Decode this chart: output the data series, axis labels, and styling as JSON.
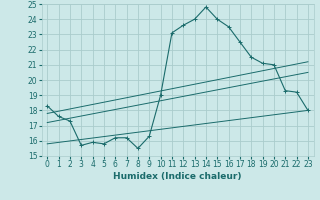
{
  "xlabel": "Humidex (Indice chaleur)",
  "ylabel": "",
  "background_color": "#cce8e8",
  "grid_color": "#aacccc",
  "line_color": "#1a6b6b",
  "xlim": [
    -0.5,
    23.5
  ],
  "ylim": [
    15,
    25
  ],
  "xticks": [
    0,
    1,
    2,
    3,
    4,
    5,
    6,
    7,
    8,
    9,
    10,
    11,
    12,
    13,
    14,
    15,
    16,
    17,
    18,
    19,
    20,
    21,
    22,
    23
  ],
  "yticks": [
    15,
    16,
    17,
    18,
    19,
    20,
    21,
    22,
    23,
    24,
    25
  ],
  "series1_x": [
    0,
    1,
    2,
    3,
    4,
    5,
    6,
    7,
    8,
    9,
    10,
    11,
    12,
    13,
    14,
    15,
    16,
    17,
    18,
    19,
    20,
    21,
    22,
    23
  ],
  "series1_y": [
    18.3,
    17.6,
    17.3,
    15.7,
    15.9,
    15.8,
    16.2,
    16.2,
    15.5,
    16.3,
    19.0,
    23.1,
    23.6,
    24.0,
    24.8,
    24.0,
    23.5,
    22.5,
    21.5,
    21.1,
    21.0,
    19.3,
    19.2,
    18.0
  ],
  "series2_x": [
    0,
    23
  ],
  "series2_y": [
    17.8,
    21.2
  ],
  "series3_x": [
    0,
    23
  ],
  "series3_y": [
    17.2,
    20.5
  ],
  "series4_x": [
    0,
    23
  ],
  "series4_y": [
    15.8,
    18.0
  ]
}
